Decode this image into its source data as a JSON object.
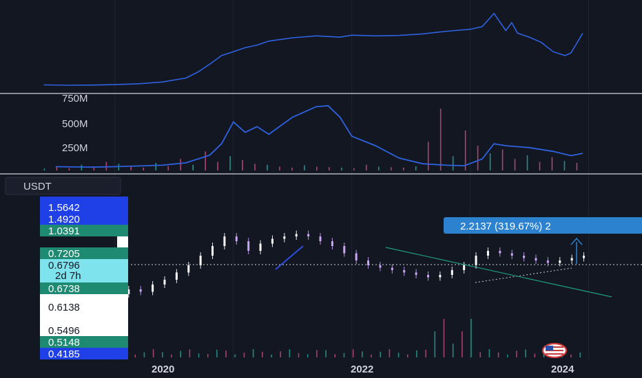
{
  "colors": {
    "background": "#131722",
    "grid": "#1f2430",
    "separator": "#d1d4dc",
    "line": "#2f62e0",
    "up": "#26a69a",
    "down": "#c74f7e",
    "trend": "#1f9e80",
    "label_blue": "#1e40e6",
    "label_green": "#1f8a72",
    "label_cyan": "#7fe3ee",
    "label_white": "#ffffff",
    "callout": "#2d82cf"
  },
  "symbol_tab": {
    "label": "USDT"
  },
  "callout": {
    "text": "2.2137 (319.67%) 2"
  },
  "countdown": "2d 7h",
  "chart_data": [
    {
      "type": "line",
      "panel": "top-indicator",
      "title": "",
      "x": [
        2019.4,
        2019.6,
        2019.8,
        2020.0,
        2020.2,
        2020.4,
        2020.6,
        2020.7,
        2020.8,
        2020.9,
        2021.0,
        2021.1,
        2021.2,
        2021.3,
        2021.5,
        2021.7,
        2021.9,
        2022.0,
        2022.2,
        2022.4,
        2022.6,
        2022.8,
        2023.0,
        2023.1,
        2023.2,
        2023.3,
        2023.35,
        2023.4,
        2023.5,
        2023.6,
        2023.7,
        2023.8,
        2023.85,
        2023.95
      ],
      "values": [
        0.8,
        0.5,
        0.6,
        1.0,
        1.6,
        3.0,
        6.0,
        10.5,
        16.5,
        23.0,
        26.0,
        29.0,
        31.0,
        34.0,
        36.5,
        38.0,
        37.0,
        38.5,
        38.0,
        38.3,
        39.5,
        41.5,
        43.0,
        45.0,
        55.0,
        42.0,
        48.0,
        40.0,
        37.0,
        33.0,
        26.0,
        23.0,
        25.0,
        40.0
      ],
      "ylim": [
        0,
        60
      ]
    },
    {
      "type": "line",
      "panel": "volume",
      "title": "",
      "y_ticks": [
        "750M",
        "500M",
        "250M"
      ],
      "y_tick_values": [
        750,
        500,
        250
      ],
      "x": [
        2019.5,
        2019.8,
        2020.0,
        2020.4,
        2020.6,
        2020.8,
        2020.9,
        2021.0,
        2021.1,
        2021.2,
        2021.3,
        2021.4,
        2021.5,
        2021.7,
        2021.8,
        2021.9,
        2022.0,
        2022.2,
        2022.4,
        2022.6,
        2022.8,
        2022.95,
        2023.1,
        2023.2,
        2023.3,
        2023.5,
        2023.7,
        2023.85,
        2023.95
      ],
      "values": [
        40,
        35,
        40,
        55,
        80,
        160,
        280,
        510,
        400,
        460,
        380,
        470,
        560,
        670,
        680,
        560,
        360,
        260,
        130,
        70,
        55,
        50,
        120,
        280,
        260,
        240,
        200,
        155,
        180
      ],
      "ylim": [
        0,
        780
      ],
      "bars": [
        20,
        40,
        25,
        60,
        35,
        90,
        70,
        50,
        30,
        80,
        45,
        120,
        60,
        200,
        90,
        150,
        110,
        70,
        60,
        40,
        30,
        55,
        40,
        35,
        30,
        25,
        60,
        40,
        35,
        30,
        45,
        300,
        650,
        150,
        420,
        260,
        180,
        220,
        120,
        160,
        90,
        140,
        100,
        80
      ]
    },
    {
      "type": "candlestick",
      "panel": "price",
      "title": "",
      "x_tick_labels": [
        "2020",
        "2022",
        "2024"
      ],
      "x_tick_values": [
        2020.0,
        2022.0,
        2024.0
      ],
      "xlim": [
        2019.03,
        2024.45
      ],
      "close": [
        0.62,
        0.58,
        0.57,
        0.59,
        0.61,
        0.6,
        0.62,
        0.64,
        0.63,
        0.66,
        0.68,
        0.71,
        0.74,
        0.78,
        0.82,
        0.86,
        0.84,
        0.8,
        0.83,
        0.85,
        0.86,
        0.87,
        0.86,
        0.84,
        0.82,
        0.79,
        0.76,
        0.74,
        0.73,
        0.72,
        0.71,
        0.7,
        0.69,
        0.7,
        0.72,
        0.74,
        0.78,
        0.8,
        0.79,
        0.78,
        0.77,
        0.76,
        0.75,
        0.76,
        0.77,
        0.78
      ],
      "price_labels": [
        {
          "text": "1.5642",
          "kind": "blue"
        },
        {
          "text": "1.4920",
          "kind": "blue"
        },
        {
          "text": "1.0391",
          "kind": "green"
        },
        {
          "text": "0.7205",
          "kind": "green"
        },
        {
          "text": "0.6796",
          "kind": "cyan"
        },
        {
          "text": "0.6738",
          "kind": "green"
        },
        {
          "text": "0.6138",
          "kind": "white"
        },
        {
          "text": "0.5496",
          "kind": "white"
        },
        {
          "text": "0.5148",
          "kind": "green"
        },
        {
          "text": "0.4185",
          "kind": "blue"
        }
      ]
    }
  ]
}
